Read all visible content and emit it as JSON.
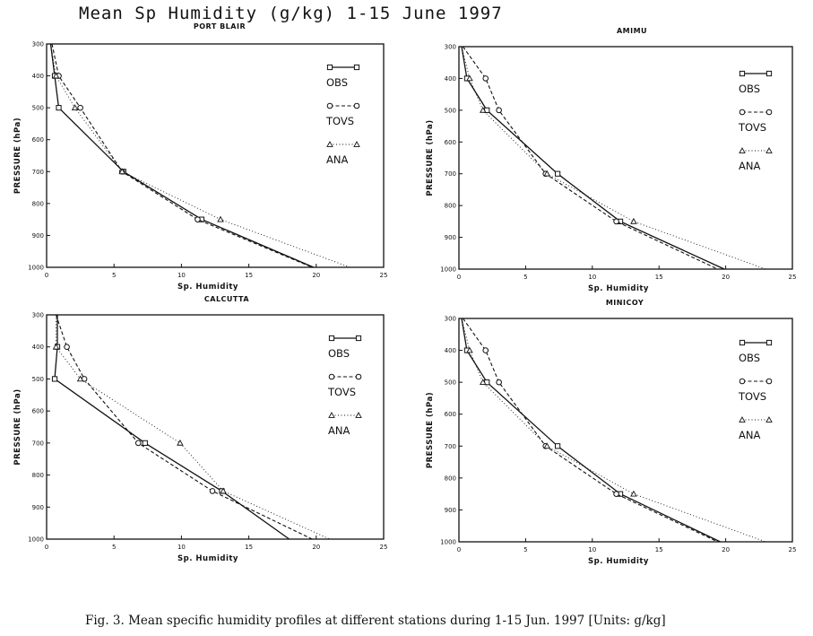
{
  "title": "Mean Sp Humidity (g/kg) 1-15 June 1997",
  "caption": "Fig. 3. Mean specific humidity profiles at different stations during 1-15 Jun. 1997 [Units: g/kg]",
  "colors": {
    "ink": "#111111",
    "background": "#ffffff"
  },
  "chart_data": [
    {
      "type": "line",
      "title": "PORT BLAIR",
      "xlabel": "Sp. Humidity",
      "ylabel": "PRESSURE (hPa)",
      "xlim": [
        0,
        25
      ],
      "ylim": [
        300,
        1000
      ],
      "xticks": [
        "0",
        "5",
        "10",
        "15",
        "20",
        "25"
      ],
      "yticks": [
        "300",
        "400",
        "500",
        "600",
        "700",
        "800",
        "900",
        "1000"
      ],
      "series": [
        {
          "name": "OBS",
          "x": [
            0.3,
            0.6,
            0.9,
            5.7,
            11.5,
            19.8
          ],
          "y": [
            300,
            400,
            500,
            700,
            850,
            1000
          ]
        },
        {
          "name": "TOVS",
          "x": [
            0.4,
            0.9,
            2.5,
            5.6,
            11.2,
            19.7
          ],
          "y": [
            300,
            400,
            500,
            700,
            850,
            1000
          ]
        },
        {
          "name": "ANA",
          "x": [
            0.3,
            0.7,
            2.1,
            5.6,
            12.9,
            22.5
          ],
          "y": [
            300,
            400,
            500,
            700,
            850,
            1000
          ]
        }
      ]
    },
    {
      "type": "line",
      "title": "AMIMU",
      "xlabel": "Sp. Humidity",
      "ylabel": "PRESSURE (hPa)",
      "xlim": [
        0,
        25
      ],
      "ylim": [
        300,
        1000
      ],
      "xticks": [
        "0",
        "5",
        "10",
        "15",
        "20",
        "25"
      ],
      "yticks": [
        "300",
        "400",
        "500",
        "600",
        "700",
        "800",
        "900",
        "1000"
      ],
      "series": [
        {
          "name": "OBS",
          "x": [
            0.2,
            0.6,
            2.1,
            7.4,
            12.1,
            19.9
          ],
          "y": [
            300,
            400,
            500,
            700,
            850,
            1000
          ]
        },
        {
          "name": "TOVS",
          "x": [
            0.3,
            2.0,
            3.0,
            6.5,
            11.8,
            19.4
          ],
          "y": [
            300,
            400,
            500,
            700,
            850,
            1000
          ]
        },
        {
          "name": "ANA",
          "x": [
            0.2,
            0.8,
            1.8,
            6.6,
            13.1,
            23.0
          ],
          "y": [
            300,
            400,
            500,
            700,
            850,
            1000
          ]
        }
      ]
    },
    {
      "type": "line",
      "title": "CALCUTTA",
      "xlabel": "Sp. Humidity",
      "ylabel": "PRESSURE (hPa)",
      "xlim": [
        0,
        25
      ],
      "ylim": [
        300,
        1000
      ],
      "xticks": [
        "0",
        "5",
        "10",
        "15",
        "20",
        "25"
      ],
      "yticks": [
        "300",
        "400",
        "500",
        "600",
        "700",
        "800",
        "900",
        "1000"
      ],
      "series": [
        {
          "name": "OBS",
          "x": [
            0.8,
            0.8,
            0.6,
            7.3,
            13.0,
            18.0
          ],
          "y": [
            300,
            400,
            500,
            700,
            850,
            1000
          ]
        },
        {
          "name": "TOVS",
          "x": [
            0.7,
            1.5,
            2.8,
            6.8,
            12.3,
            19.7
          ],
          "y": [
            300,
            400,
            500,
            700,
            850,
            1000
          ]
        },
        {
          "name": "ANA",
          "x": [
            0.7,
            0.7,
            2.5,
            9.9,
            13.1,
            21.0
          ],
          "y": [
            300,
            400,
            500,
            700,
            850,
            1000
          ]
        }
      ]
    },
    {
      "type": "line",
      "title": "MINICOY",
      "xlabel": "Sp. Humidity",
      "ylabel": "PRESSURE (hPa)",
      "xlim": [
        0,
        25
      ],
      "ylim": [
        300,
        1000
      ],
      "xticks": [
        "0",
        "5",
        "10",
        "15",
        "20",
        "25"
      ],
      "yticks": [
        "300",
        "400",
        "500",
        "600",
        "700",
        "800",
        "900",
        "1000"
      ],
      "series": [
        {
          "name": "OBS",
          "x": [
            0.2,
            0.6,
            2.1,
            7.4,
            12.1,
            19.6
          ],
          "y": [
            300,
            400,
            500,
            700,
            850,
            1000
          ]
        },
        {
          "name": "TOVS",
          "x": [
            0.3,
            2.0,
            3.0,
            6.5,
            11.8,
            19.4
          ],
          "y": [
            300,
            400,
            500,
            700,
            850,
            1000
          ]
        },
        {
          "name": "ANA",
          "x": [
            0.2,
            0.8,
            1.8,
            6.6,
            13.1,
            23.0
          ],
          "y": [
            300,
            400,
            500,
            700,
            850,
            1000
          ]
        }
      ]
    }
  ]
}
